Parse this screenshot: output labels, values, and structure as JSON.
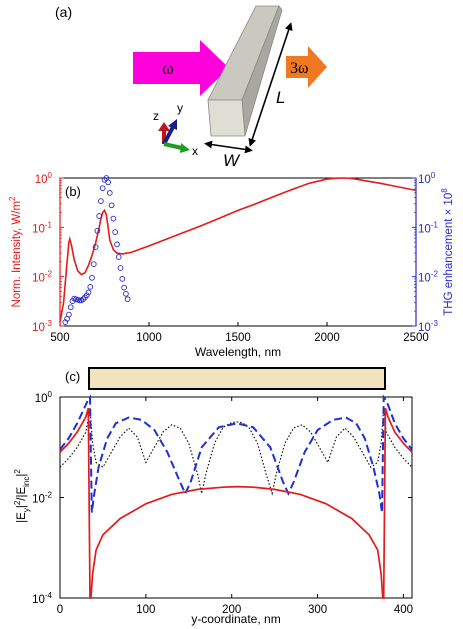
{
  "panel_a": {
    "label": "(a)",
    "input_freq": "ω",
    "output_freq": "3ω",
    "length_label": "L",
    "width_label": "W",
    "axis_x": "x",
    "axis_y": "y",
    "axis_z": "z",
    "colors": {
      "input_arrow": "#ff00dd",
      "output_arrow": "#f07820",
      "rod_top": "#c9c9c0",
      "rod_side": "#a8a8a0",
      "rod_front": "#deded4"
    }
  },
  "chart_data": [
    {
      "type": "line",
      "panel_label": "(b)",
      "xlabel": "Wavelength, nm",
      "ylabel_left": "Norm. Intensity, W/m",
      "ylabel_left_sup": "2",
      "ylabel_right": "THG enhancement × 10",
      "ylabel_right_sup": "8",
      "xlim": [
        500,
        2500
      ],
      "xticks": [
        "500",
        "1000",
        "1500",
        "2000",
        "2500"
      ],
      "ylim_left": [
        0.001,
        1
      ],
      "yscale": "log",
      "yticks_left": [
        {
          "base": "10",
          "exp": "0"
        },
        {
          "base": "10",
          "exp": "-1"
        },
        {
          "base": "10",
          "exp": "-2"
        },
        {
          "base": "10",
          "exp": "-3"
        }
      ],
      "ylim_right": [
        0.001,
        1
      ],
      "yticks_right": [
        {
          "base": "10",
          "exp": "0"
        },
        {
          "base": "10",
          "exp": "-1"
        },
        {
          "base": "10",
          "exp": "-2"
        },
        {
          "base": "10",
          "exp": "-3"
        }
      ],
      "colors": {
        "left_axis": "#e41a1c",
        "right_axis": "#2a2ad0",
        "line": "#e41a1c",
        "markers": "#2a2ad0"
      },
      "series": [
        {
          "style": "solid-line",
          "axis": "left",
          "x": [
            500,
            520,
            540,
            550,
            555,
            565,
            580,
            600,
            620,
            640,
            660,
            680,
            700,
            720,
            730,
            740,
            750,
            760,
            770,
            780,
            800,
            820,
            850,
            900,
            1000,
            1100,
            1200,
            1300,
            1400,
            1500,
            1600,
            1700,
            1800,
            1900,
            2000,
            2050,
            2100,
            2150,
            2200,
            2300,
            2400,
            2500
          ],
          "y": [
            0.0012,
            0.003,
            0.02,
            0.05,
            0.058,
            0.042,
            0.022,
            0.013,
            0.011,
            0.012,
            0.017,
            0.027,
            0.048,
            0.1,
            0.15,
            0.2,
            0.22,
            0.18,
            0.1,
            0.055,
            0.035,
            0.03,
            0.029,
            0.031,
            0.042,
            0.058,
            0.08,
            0.11,
            0.155,
            0.22,
            0.3,
            0.42,
            0.58,
            0.78,
            0.95,
            0.99,
            1.0,
            0.97,
            0.9,
            0.78,
            0.66,
            0.56
          ]
        },
        {
          "style": "open-circles",
          "axis": "right",
          "x": [
            530,
            540,
            550,
            560,
            570,
            580,
            590,
            600,
            610,
            620,
            630,
            640,
            650,
            660,
            670,
            680,
            690,
            700,
            710,
            720,
            730,
            740,
            750,
            760,
            770,
            780,
            790,
            800,
            810,
            820,
            830,
            840,
            850,
            860,
            870,
            880
          ],
          "y": [
            0.0012,
            0.0014,
            0.0017,
            0.0024,
            0.0032,
            0.0036,
            0.0035,
            0.0034,
            0.0033,
            0.0033,
            0.0035,
            0.0038,
            0.0042,
            0.0048,
            0.0062,
            0.0095,
            0.018,
            0.04,
            0.085,
            0.17,
            0.34,
            0.62,
            0.92,
            1.0,
            0.82,
            0.5,
            0.28,
            0.15,
            0.08,
            0.045,
            0.025,
            0.015,
            0.009,
            0.006,
            0.0045,
            0.0035
          ]
        }
      ]
    },
    {
      "type": "line",
      "panel_label": "(c)",
      "xlabel": "y-coordinate, nm",
      "ylabel": "|E",
      "ylabel_sub1": "y",
      "ylabel_mid": "|",
      "ylabel_sup1": "2",
      "ylabel_mid2": "/|E",
      "ylabel_sub2": "inc",
      "ylabel_end": "|",
      "ylabel_sup2": "2",
      "xlim": [
        0,
        410
      ],
      "xticks": [
        "0",
        "100",
        "200",
        "300",
        "400"
      ],
      "ylim": [
        0.0001,
        1
      ],
      "yscale": "log",
      "yticks": [
        {
          "base": "10",
          "exp": "0"
        },
        {
          "base": "10",
          "exp": "-2"
        },
        {
          "base": "10",
          "exp": "-4"
        }
      ],
      "structure_range": [
        35,
        377
      ],
      "colors": {
        "red": "#e41a1c",
        "blue": "#1f2fd6",
        "black": "#000000",
        "bar_fill": "#f1e3be"
      },
      "series": [
        {
          "style": "solid-red",
          "x": [
            0,
            10,
            20,
            30,
            33,
            35,
            36,
            38,
            42,
            50,
            70,
            100,
            130,
            160,
            190,
            206,
            225,
            250,
            280,
            310,
            340,
            360,
            370,
            374,
            376,
            377,
            379,
            382,
            390,
            400,
            410
          ],
          "y": [
            0.08,
            0.12,
            0.2,
            0.4,
            0.6,
            0.0001,
            0.0001,
            0.0003,
            0.0009,
            0.0018,
            0.0038,
            0.0075,
            0.0115,
            0.0145,
            0.016,
            0.0165,
            0.016,
            0.0145,
            0.0115,
            0.0075,
            0.0038,
            0.0018,
            0.0009,
            0.0003,
            0.0001,
            0.0001,
            0.6,
            0.4,
            0.2,
            0.12,
            0.08
          ]
        },
        {
          "style": "dashed-blue",
          "x": [
            0,
            10,
            20,
            30,
            33,
            35,
            37,
            40,
            45,
            55,
            65,
            80,
            95,
            110,
            125,
            140,
            146,
            152,
            165,
            185,
            206,
            225,
            245,
            260,
            266,
            272,
            285,
            300,
            318,
            333,
            345,
            355,
            365,
            372,
            375,
            377,
            379,
            382,
            390,
            400,
            410
          ],
          "y": [
            0.09,
            0.15,
            0.3,
            0.7,
            0.9,
            0.99,
            0.005,
            0.012,
            0.04,
            0.15,
            0.3,
            0.39,
            0.35,
            0.22,
            0.08,
            0.02,
            0.012,
            0.02,
            0.1,
            0.25,
            0.3,
            0.25,
            0.1,
            0.02,
            0.012,
            0.02,
            0.08,
            0.22,
            0.35,
            0.39,
            0.3,
            0.15,
            0.04,
            0.012,
            0.005,
            0.99,
            0.9,
            0.7,
            0.3,
            0.15,
            0.09
          ]
        },
        {
          "style": "dotted-black",
          "x": [
            0,
            10,
            20,
            30,
            35,
            38,
            42,
            50,
            60,
            70,
            80,
            90,
            100,
            110,
            120,
            130,
            140,
            150,
            160,
            165,
            170,
            180,
            190,
            200,
            206,
            212,
            220,
            230,
            240,
            247,
            252,
            262,
            272,
            282,
            292,
            302,
            312,
            322,
            332,
            342,
            352,
            362,
            370,
            374,
            377,
            380,
            390,
            400,
            410
          ],
          "y": [
            0.04,
            0.06,
            0.1,
            0.2,
            0.6,
            0.12,
            0.05,
            0.04,
            0.08,
            0.16,
            0.24,
            0.16,
            0.05,
            0.1,
            0.2,
            0.28,
            0.24,
            0.12,
            0.03,
            0.012,
            0.03,
            0.12,
            0.25,
            0.31,
            0.32,
            0.31,
            0.25,
            0.12,
            0.03,
            0.012,
            0.03,
            0.12,
            0.24,
            0.28,
            0.2,
            0.1,
            0.05,
            0.16,
            0.24,
            0.16,
            0.08,
            0.04,
            0.05,
            0.12,
            0.6,
            0.2,
            0.1,
            0.06,
            0.04
          ]
        }
      ]
    }
  ]
}
